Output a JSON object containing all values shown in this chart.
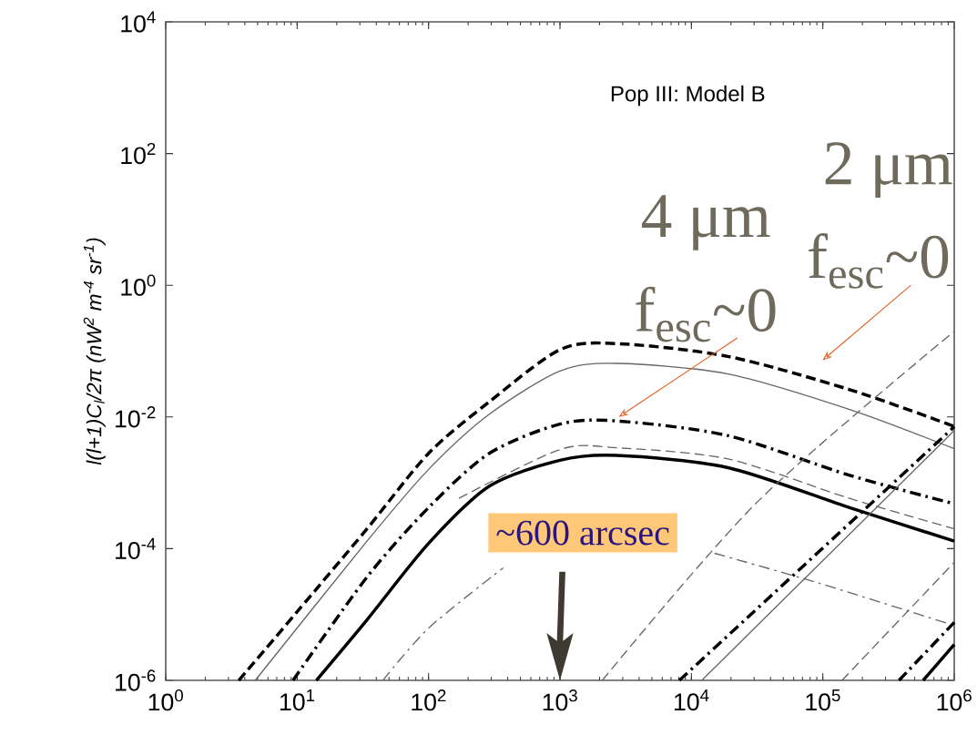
{
  "chart_data": {
    "type": "line",
    "log": "xy",
    "ylabel": "*l(l+1)C$_{l}$/2π (nW$^{2}$ m$^{-4}$ sr$^{-1}$)*",
    "xlim": [
      1,
      1000000
    ],
    "ylim": [
      1e-06,
      10000
    ],
    "xticks": [
      {
        "value": 1,
        "label": "10$^{0}$"
      },
      {
        "value": 10,
        "label": "10$^{1}$"
      },
      {
        "value": 100,
        "label": "10$^{2}$"
      },
      {
        "value": 1000,
        "label": "10$^{3}$"
      },
      {
        "value": 10000,
        "label": "10$^{4}$"
      },
      {
        "value": 100000,
        "label": "10$^{5}$"
      },
      {
        "value": 1000000,
        "label": "10$^{6}$"
      }
    ],
    "yticks": [
      {
        "value": 1e-06,
        "label": "10$^{-6}$"
      },
      {
        "value": 0.0001,
        "label": "10$^{-4}$"
      },
      {
        "value": 0.01,
        "label": "10$^{-2}$"
      },
      {
        "value": 1,
        "label": "10$^{0}$"
      },
      {
        "value": 100,
        "label": "10$^{2}$"
      },
      {
        "value": 10000,
        "label": "10$^{4}$"
      }
    ],
    "series": [
      {
        "color": "#000000",
        "line_style": "dashed",
        "x": [
          3.6,
          10,
          34,
          100,
          290,
          1000,
          2700,
          19000,
          160000,
          1000000
        ],
        "values": [
          1e-06,
          1.1e-05,
          0.0002,
          0.0028,
          0.017,
          0.105,
          0.13,
          0.083,
          0.026,
          0.0072
        ]
      },
      {
        "color": "#666666",
        "line_style": "solid",
        "x": [
          4.8,
          34,
          100,
          290,
          1000,
          2700,
          19000,
          160000,
          1000000
        ],
        "values": [
          1e-06,
          0.00013,
          0.0016,
          0.011,
          0.05,
          0.065,
          0.045,
          0.013,
          0.0033
        ]
      },
      {
        "color": "#000000",
        "line_style": "dashdot",
        "x": [
          9.3,
          34,
          100,
          290,
          1000,
          2700,
          19000,
          160000,
          1000000
        ],
        "values": [
          1e-06,
          3.7e-05,
          0.00042,
          0.0028,
          0.0078,
          0.0087,
          0.0052,
          0.0013,
          0.00048
        ]
      },
      {
        "color": "#000000",
        "line_style": "solid",
        "x": [
          14,
          34,
          100,
          290,
          1000,
          2700,
          19000,
          160000,
          1000000
        ],
        "values": [
          1e-06,
          8.3e-06,
          0.00012,
          0.00089,
          0.0022,
          0.0026,
          0.0017,
          0.00042,
          0.00013
        ]
      },
      {
        "color": "#666666",
        "line_style": "dashed",
        "x": [
          170,
          1000,
          2700,
          19000,
          160000,
          1000000
        ],
        "values": [
          0.00058,
          0.0032,
          0.0034,
          0.0023,
          0.00058,
          0.0002
        ]
      },
      {
        "color": "#666666",
        "line_style": "dashdot",
        "x": [
          45,
          100,
          370,
          1000,
          3200,
          15000,
          93000,
          1000000
        ],
        "values": [
          1e-06,
          6.2e-06,
          5.1e-05,
          null,
          null,
          8.5e-05,
          3e-05,
          6.8e-06
        ]
      },
      {
        "color": "#666666",
        "line_style": "dashed",
        "x": [
          2100,
          32000,
          1000000
        ],
        "values": [
          1e-06,
          0.00052,
          0.2
        ]
      },
      {
        "color": "#000000",
        "line_style": "dashdot",
        "x": [
          8100,
          1000000
        ],
        "values": [
          1e-06,
          0.0071
        ]
      },
      {
        "color": "#666666",
        "line_style": "solid",
        "x": [
          12000,
          1000000
        ],
        "values": [
          1e-06,
          0.0062
        ]
      },
      {
        "color": "#666666",
        "line_style": "dashed",
        "x": [
          140000,
          1000000
        ],
        "values": [
          1e-06,
          6.2e-05
        ]
      },
      {
        "color": "#000000",
        "line_style": "dashdot",
        "x": [
          380000,
          1000000
        ],
        "values": [
          1e-06,
          7.6e-06
        ]
      },
      {
        "color": "#000000",
        "line_style": "solid",
        "x": [
          580000,
          1000000
        ],
        "values": [
          1e-06,
          3.5e-06
        ]
      }
    ],
    "annotations": [
      "Pop III: Model B",
      "4 μm",
      {
        "text": "f$_{esc}$~0",
        "x": 2800,
        "y": 0.01
      },
      "2 μm",
      "f$_{esc}$~0",
      "~600 arcsec"
    ]
  }
}
